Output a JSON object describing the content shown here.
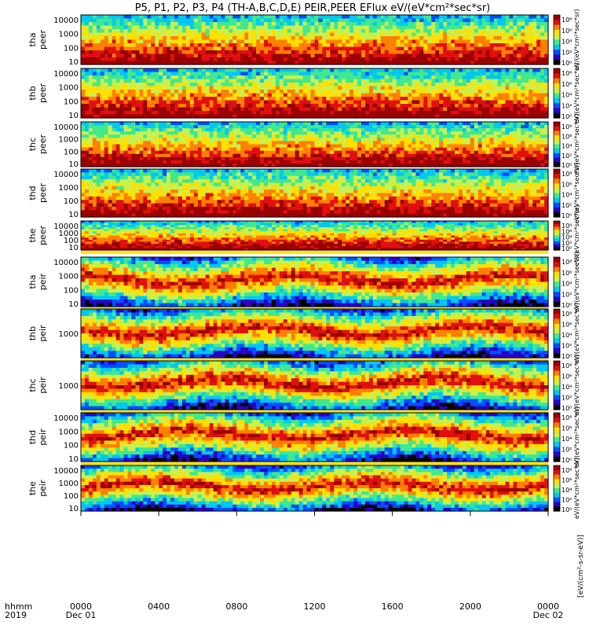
{
  "chart_data": {
    "type": "heatmap",
    "title": "P5, P1, P2, P3, P4 (TH-A,B,C,D,E) PEIR,PEER EFlux eV/(eV*cm²*sec*sr)",
    "xlabel_top": "hhmm",
    "xlabel_bottom": "2019",
    "x_ticks": [
      {
        "time": "0000",
        "date": "Dec 01"
      },
      {
        "time": "0400",
        "date": ""
      },
      {
        "time": "0800",
        "date": ""
      },
      {
        "time": "1200",
        "date": ""
      },
      {
        "time": "1600",
        "date": ""
      },
      {
        "time": "2000",
        "date": ""
      },
      {
        "time": "0000",
        "date": "Dec 02"
      }
    ],
    "colorbar_label": "eV/(eV*cm²*sec*sr)",
    "colorbar_units": "[eV/(cm²-s-sr-eV)]",
    "colorbar_ticks": [
      "10⁸",
      "10⁶",
      "10⁴",
      "10²",
      "10⁰"
    ],
    "colormap": [
      "#000000",
      "#2a00c8",
      "#0050ff",
      "#00c8f0",
      "#40e890",
      "#c8f050",
      "#ffe000",
      "#ff8000",
      "#e01010",
      "#9a0000"
    ],
    "panels": [
      {
        "probe": "tha",
        "species": "peer",
        "y_ticks": [
          "10000",
          "1000",
          "100",
          "10"
        ],
        "mode_bar": false
      },
      {
        "probe": "thb",
        "species": "peer",
        "y_ticks": [
          "10000",
          "1000",
          "100",
          "10"
        ],
        "mode_bar": false
      },
      {
        "probe": "thc",
        "species": "peer",
        "y_ticks": [
          "10000",
          "1000",
          "100",
          "10"
        ],
        "mode_bar": false
      },
      {
        "probe": "thd",
        "species": "peer",
        "y_ticks": [
          "10000",
          "1000",
          "100",
          "10"
        ],
        "mode_bar": false
      },
      {
        "probe": "the",
        "species": "peer",
        "y_ticks": [
          "10000",
          "1000",
          "100",
          "10"
        ],
        "mode_bar": true
      },
      {
        "probe": "tha",
        "species": "peir",
        "y_ticks": [
          "10000",
          "1000",
          "100",
          "10"
        ],
        "mode_bar": true
      },
      {
        "probe": "thb",
        "species": "peir",
        "y_ticks": [
          "1000"
        ],
        "mode_bar": true
      },
      {
        "probe": "thc",
        "species": "peir",
        "y_ticks": [
          "1000"
        ],
        "mode_bar": true
      },
      {
        "probe": "thd",
        "species": "peir",
        "y_ticks": [
          "10000",
          "1000",
          "100",
          "10"
        ],
        "mode_bar": true
      },
      {
        "probe": "the",
        "species": "peir",
        "y_ticks": [
          "10000",
          "1000",
          "100",
          "10"
        ],
        "mode_bar": false
      }
    ]
  }
}
